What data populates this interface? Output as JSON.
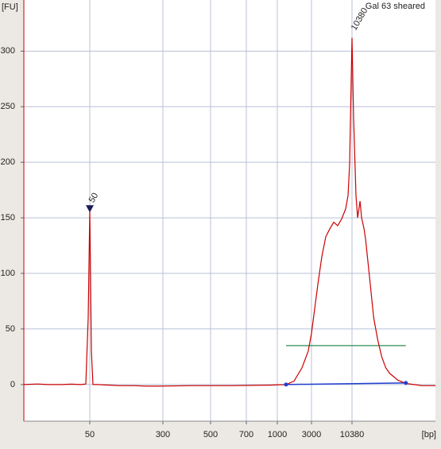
{
  "chart_data": {
    "type": "line",
    "title": "Gal 63 sheared",
    "ylabel": "[FU]",
    "xlabel": "[bp]",
    "color": "#cc0000",
    "x": [
      10,
      14,
      18,
      25,
      32,
      40,
      45.4,
      48.1,
      50,
      52,
      54,
      60,
      80,
      103,
      150,
      200,
      272,
      404,
      603,
      921,
      1325,
      1711,
      2210,
      2700,
      3000,
      3645,
      4116,
      4650,
      5251,
      5931,
      6698,
      7565,
      8545,
      9192,
      9655,
      10380,
      10898,
      11720,
      12300,
      13240,
      13900,
      14950,
      15700,
      17740,
      20040,
      22640,
      25530,
      28850,
      32600,
      36800,
      41560,
      53000,
      67600,
      86200,
      110000,
      130000
    ],
    "values": [
      0,
      0.5,
      0,
      0,
      0.3,
      0,
      0.5,
      60,
      157,
      30,
      0,
      0,
      -0.5,
      -1,
      -1,
      -1.5,
      -1.5,
      -1,
      -1,
      -0.5,
      0,
      3,
      15,
      30,
      46,
      90,
      115,
      133,
      140,
      146,
      143,
      149,
      158,
      170,
      198,
      312,
      240,
      170,
      150,
      165,
      150,
      140,
      130,
      95,
      60,
      40,
      25,
      15,
      10,
      7,
      4,
      1,
      0,
      -1,
      -1,
      -1
    ],
    "xlim": [
      10,
      130000
    ],
    "xticks": [
      50,
      300,
      500,
      700,
      1000,
      3000,
      10380
    ],
    "ylim": [
      -33,
      346
    ],
    "yticks": [
      0,
      50,
      100,
      150,
      200,
      250,
      300
    ],
    "grid": true,
    "annotations": [
      {
        "text": "50",
        "x": 50,
        "y": 157,
        "color": "#008000"
      },
      {
        "text": "10380",
        "x": 10380,
        "y": 312,
        "color": "#8040c0"
      }
    ],
    "region": {
      "from": 1325,
      "to": 53000,
      "level": 35,
      "color": "#2e8b57",
      "baseline_color": "#1f3fd0"
    }
  }
}
